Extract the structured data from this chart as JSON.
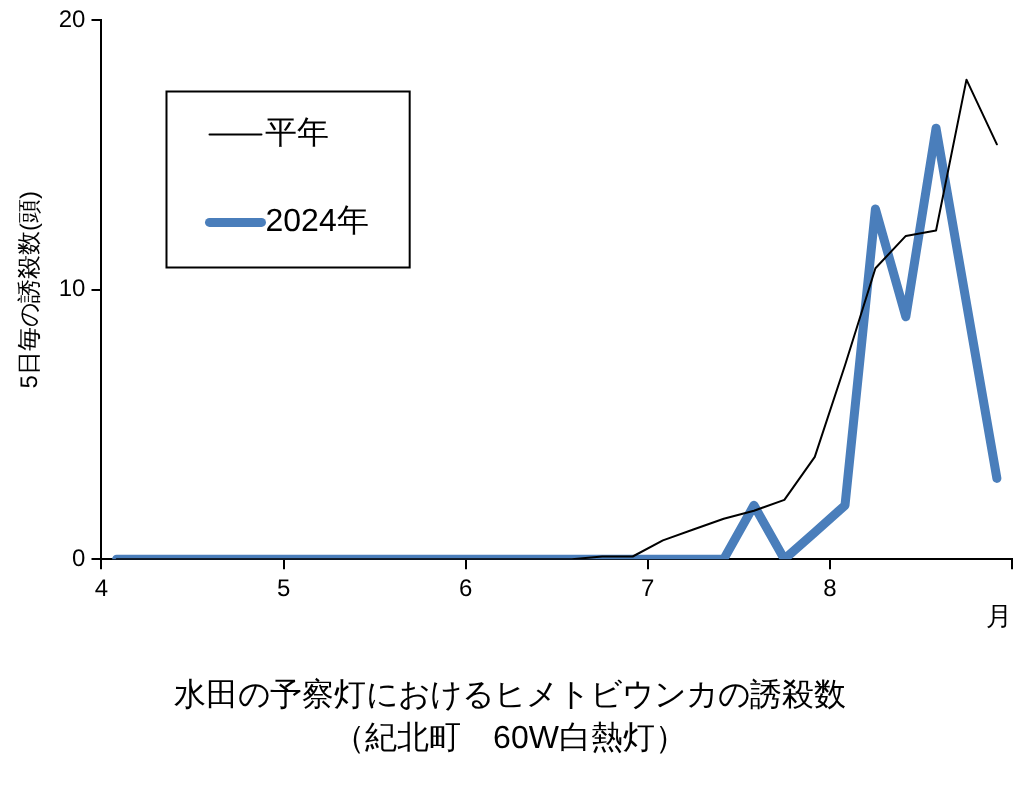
{
  "chart_data": {
    "type": "line",
    "title": "水田の予察灯におけるヒメトビウンカの誘殺数",
    "subtitle": "（紀北町　60W白熱灯）",
    "xlabel": "月",
    "ylabel": "5日毎の誘殺数(頭)",
    "x": [
      4.083,
      4.25,
      4.417,
      4.583,
      4.75,
      4.917,
      5.083,
      5.25,
      5.417,
      5.583,
      5.75,
      5.917,
      6.083,
      6.25,
      6.417,
      6.583,
      6.75,
      6.917,
      7.083,
      7.25,
      7.417,
      7.583,
      7.75,
      7.917,
      8.083,
      8.25,
      8.417,
      8.583,
      8.75,
      8.917
    ],
    "series": [
      {
        "name": "平年",
        "color": "#000000",
        "values": [
          0,
          0,
          0,
          0,
          0,
          0,
          0,
          0,
          0,
          0,
          0,
          0,
          0,
          0,
          0,
          0,
          0.1,
          0.1,
          0.7,
          1.1,
          1.5,
          1.8,
          2.2,
          3.8,
          7.2,
          10.8,
          12,
          12.2,
          17.8,
          15.4
        ]
      },
      {
        "name": "2024年",
        "color": "#4a7ebb",
        "values": [
          0,
          0,
          0,
          0,
          0,
          0,
          0,
          0,
          0,
          0,
          0,
          0,
          0,
          0,
          0,
          0,
          0,
          0,
          0,
          0,
          0,
          2,
          0,
          1,
          2,
          13,
          9,
          16,
          9.5,
          3
        ]
      }
    ],
    "xlim": [
      4,
      9
    ],
    "xticks": [
      4,
      5,
      6,
      7,
      8,
      {
        "value": 9,
        "label": null
      }
    ],
    "ylim": [
      0,
      20
    ],
    "yticks": [
      0,
      10,
      20
    ],
    "grid": false,
    "legend": "top left",
    "marker": "none",
    "line_style": "solid"
  }
}
